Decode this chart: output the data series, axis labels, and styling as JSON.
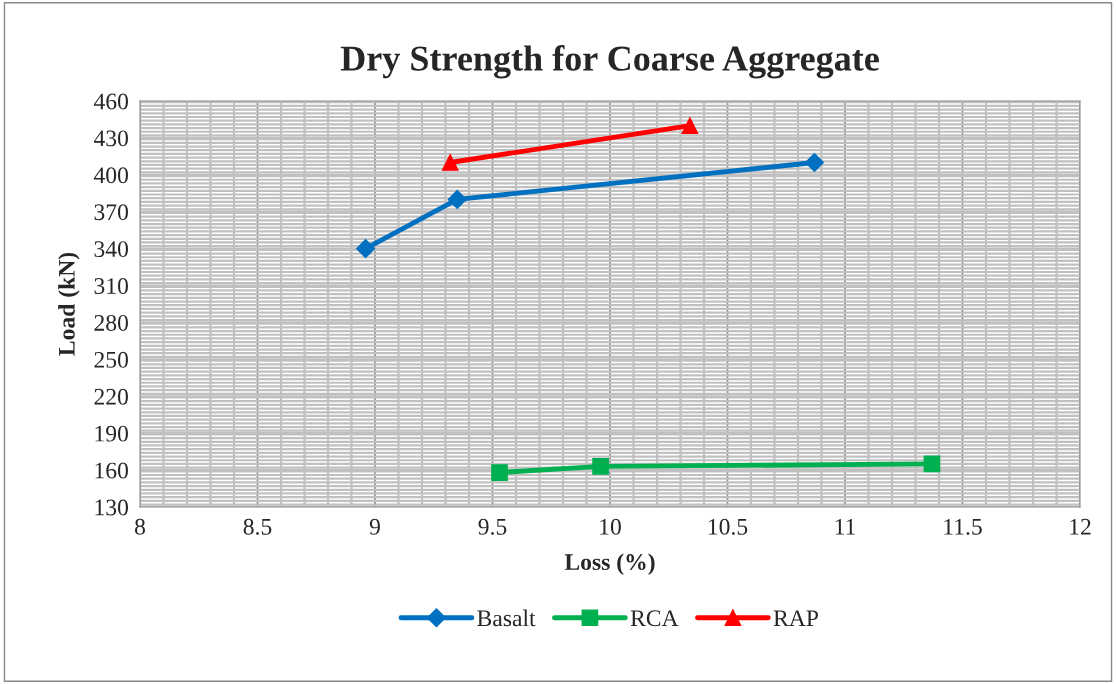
{
  "chart_data": {
    "type": "line",
    "title": "Dry Strength for Coarse Aggregate",
    "xlabel": "Loss (%)",
    "ylabel": "Load (kN)",
    "xlim": [
      8,
      12
    ],
    "xticks": [
      8,
      8.5,
      9,
      9.5,
      10,
      10.5,
      11,
      11.5,
      12
    ],
    "ylim": [
      130,
      460
    ],
    "yticks": [
      130,
      160,
      190,
      220,
      250,
      280,
      310,
      340,
      370,
      400,
      430,
      460
    ],
    "grid": true,
    "legend": "bottom",
    "line_style": "solid",
    "series": [
      {
        "name": "Basalt",
        "color": "#0070c0",
        "marker": "diamond",
        "x": [
          8.96,
          9.35,
          10.87
        ],
        "values": [
          340,
          380,
          410
        ]
      },
      {
        "name": "RCA",
        "color": "#00b050",
        "marker": "square",
        "x": [
          9.53,
          9.96,
          11.37
        ],
        "values": [
          158,
          163,
          165
        ]
      },
      {
        "name": "RAP",
        "color": "#ff0000",
        "marker": "triangle",
        "x": [
          9.32,
          10.34
        ],
        "values": [
          410,
          440
        ]
      }
    ]
  }
}
